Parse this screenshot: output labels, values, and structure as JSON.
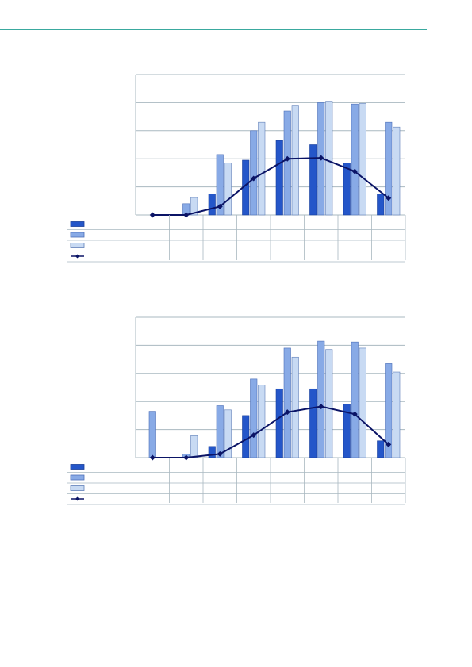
{
  "colors": {
    "rule": "#3aa99f",
    "grid": "#a9b8c0",
    "series1": "#2456c9",
    "series2": "#88aae6",
    "series3": "#c8daf3",
    "line": "#0b1466"
  },
  "chart_data": [
    {
      "type": "bar",
      "title": "",
      "xlabel": "",
      "ylabel": "",
      "legend": "below-left-table",
      "grid": true,
      "ylim": [
        0,
        5
      ],
      "categories": [
        "",
        "",
        "",
        "",
        "",
        "",
        "",
        ""
      ],
      "series": [
        {
          "kind": "bar",
          "values": [
            0,
            0,
            0.75,
            1.95,
            2.65,
            2.5,
            1.85,
            0.75
          ]
        },
        {
          "kind": "bar",
          "values": [
            0,
            0.4,
            2.15,
            3.0,
            3.7,
            4.0,
            3.95,
            3.3
          ]
        },
        {
          "kind": "bar",
          "values": [
            0,
            0.62,
            1.85,
            3.3,
            3.88,
            4.05,
            3.97,
            3.13
          ]
        },
        {
          "kind": "line",
          "values": [
            0,
            0,
            0.3,
            1.3,
            2.0,
            2.03,
            1.55,
            0.6
          ]
        }
      ]
    },
    {
      "type": "bar",
      "title": "",
      "xlabel": "",
      "ylabel": "",
      "legend": "below-left-table",
      "grid": true,
      "ylim": [
        0,
        5
      ],
      "categories": [
        "",
        "",
        "",
        "",
        "",
        "",
        "",
        ""
      ],
      "series": [
        {
          "kind": "bar",
          "values": [
            0,
            0,
            0.4,
            1.5,
            2.45,
            2.45,
            1.9,
            0.6
          ]
        },
        {
          "kind": "bar",
          "values": [
            1.65,
            0.13,
            1.85,
            2.8,
            3.9,
            4.15,
            4.12,
            3.35
          ]
        },
        {
          "kind": "bar",
          "values": [
            0,
            0.78,
            1.7,
            2.58,
            3.58,
            3.85,
            3.9,
            3.05
          ]
        },
        {
          "kind": "line",
          "values": [
            0,
            0,
            0.13,
            0.8,
            1.62,
            1.82,
            1.55,
            0.47
          ]
        }
      ]
    }
  ]
}
